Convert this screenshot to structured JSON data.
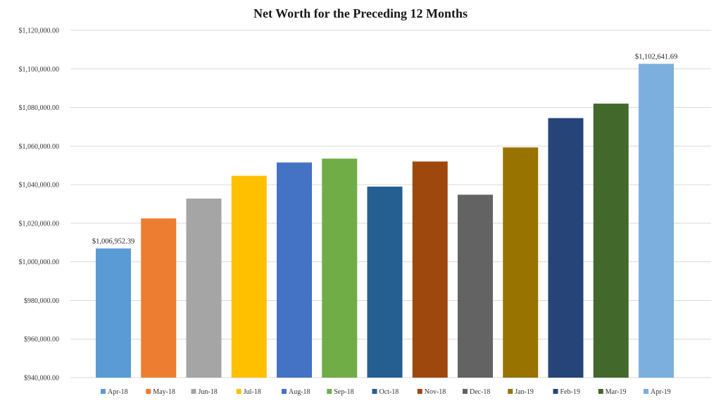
{
  "chart_data": {
    "type": "bar",
    "title": "Net Worth for the Preceding 12 Months",
    "categories": [
      "Apr-18",
      "May-18",
      "Jun-18",
      "Jul-18",
      "Aug-18",
      "Sep-18",
      "Oct-18",
      "Nov-18",
      "Dec-18",
      "Jan-19",
      "Feb-19",
      "Mar-19",
      "Apr-19"
    ],
    "values": [
      1006952.39,
      1022500,
      1032800,
      1044600,
      1051500,
      1053500,
      1039000,
      1052000,
      1034800,
      1059300,
      1074500,
      1082000,
      1102641.69
    ],
    "colors": [
      "#5b9bd5",
      "#ed7d31",
      "#a5a5a5",
      "#ffc000",
      "#4472c4",
      "#70ad47",
      "#255e91",
      "#9e480e",
      "#636363",
      "#997300",
      "#264478",
      "#43682b",
      "#7cafdd"
    ],
    "data_labels": [
      {
        "index": 0,
        "text": "$1,006,952.39"
      },
      {
        "index": 12,
        "text": "$1,102,641.69"
      }
    ],
    "y_ticks": [
      {
        "value": 940000,
        "label": "$940,000.00"
      },
      {
        "value": 960000,
        "label": "$960,000.00"
      },
      {
        "value": 980000,
        "label": "$980,000.00"
      },
      {
        "value": 1000000,
        "label": "$1,000,000.00"
      },
      {
        "value": 1020000,
        "label": "$1,020,000.00"
      },
      {
        "value": 1040000,
        "label": "$1,040,000.00"
      },
      {
        "value": 1060000,
        "label": "$1,060,000.00"
      },
      {
        "value": 1080000,
        "label": "$1,080,000.00"
      },
      {
        "value": 1100000,
        "label": "$1,100,000.00"
      },
      {
        "value": 1120000,
        "label": "$1,120,000.00"
      }
    ],
    "ylim": [
      940000,
      1120000
    ],
    "xlabel": "",
    "ylabel": "",
    "grid": true,
    "legend": "bottom"
  }
}
